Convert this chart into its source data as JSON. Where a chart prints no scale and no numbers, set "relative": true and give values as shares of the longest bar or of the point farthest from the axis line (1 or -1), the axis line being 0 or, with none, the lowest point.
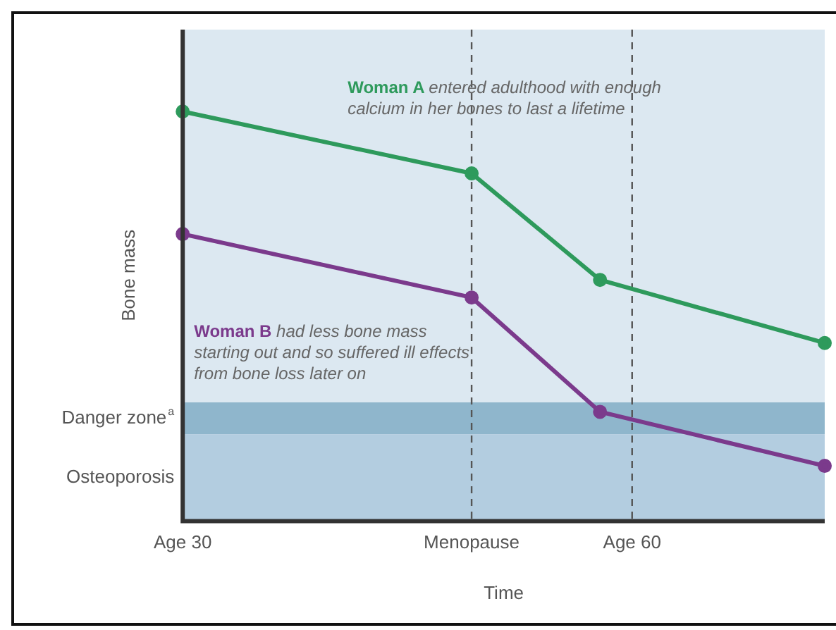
{
  "chart_data": {
    "type": "line",
    "relative": true,
    "xlabel": "Time",
    "ylabel": "Bone mass",
    "categories": [
      "Age 30",
      null,
      null,
      null,
      null,
      null,
      null,
      null,
      null,
      null,
      null,
      null,
      null,
      null,
      null,
      null,
      null,
      null,
      "Menopause",
      null,
      null,
      null,
      null,
      null,
      null,
      null,
      null,
      null,
      "Age 60",
      null,
      null,
      null,
      null,
      null,
      null,
      null,
      null,
      null,
      null,
      null,
      null
    ],
    "series": [
      {
        "name": "Woman A",
        "color": "#2e9a5c",
        "values": [
          1,
          null,
          null,
          null,
          null,
          null,
          null,
          null,
          null,
          null,
          null,
          null,
          null,
          null,
          null,
          null,
          null,
          null,
          0.849,
          null,
          null,
          null,
          null,
          null,
          null,
          null,
          0.589,
          null,
          null,
          null,
          null,
          null,
          null,
          null,
          null,
          null,
          null,
          null,
          null,
          null,
          0.435
        ]
      },
      {
        "name": "Woman B",
        "color": "#7b3a8c",
        "values": [
          0.701,
          null,
          null,
          null,
          null,
          null,
          null,
          null,
          null,
          null,
          null,
          null,
          null,
          null,
          null,
          null,
          null,
          null,
          0.546,
          null,
          null,
          null,
          null,
          null,
          null,
          null,
          0.267,
          null,
          null,
          null,
          null,
          null,
          null,
          null,
          null,
          null,
          null,
          null,
          null,
          null,
          0.135
        ]
      }
    ],
    "bands": [
      {
        "axis": "y",
        "from": 0.212,
        "to": 0.29,
        "label": "Danger zone$^{a}$",
        "color": "#8fb6cc"
      },
      {
        "axis": "y",
        "from": 0,
        "to": 0.212,
        "label": "Osteoporosis",
        "color": "#b3cde0"
      }
    ],
    "ref_lines": [
      {
        "axis": "x",
        "value": "Menopause",
        "line_style": "dashed",
        "color": "#555555"
      },
      {
        "axis": "x",
        "value": "Age 60",
        "line_style": "dashed",
        "color": "#555555"
      }
    ],
    "annotations": [
      "entered adulthood with enough calcium in her bones to last a lifetime",
      "had less bone mass starting out and so suffered ill effects from bone loss later on"
    ],
    "marker": "circle",
    "line_style": "solid",
    "grid": false,
    "legend": false
  }
}
